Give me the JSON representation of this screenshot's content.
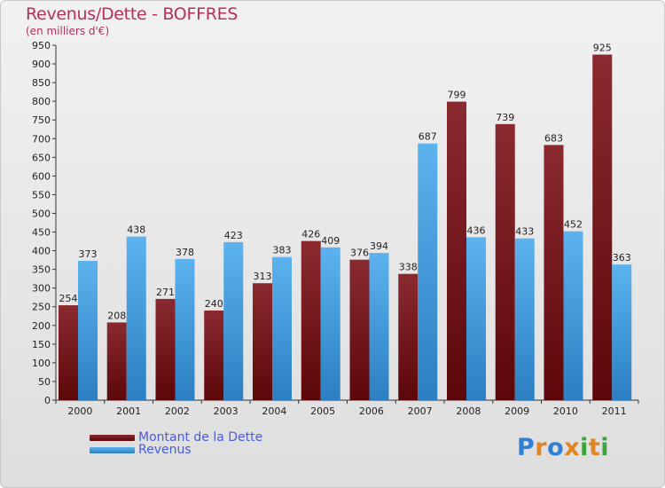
{
  "colors": {
    "debt": "#6b0f14",
    "revenue": "#3a9be2",
    "title": "#b5305a",
    "legend_text": "#4b5bd6"
  },
  "chart_data": {
    "type": "bar",
    "title": "Revenus/Dette - BOFFRES",
    "subtitle": "(en milliers d'€)",
    "xlabel": "",
    "ylabel": "",
    "ylim": [
      0,
      950
    ],
    "ytick_step": 50,
    "grid": false,
    "legend_position": "bottom-left",
    "categories": [
      "2000",
      "2001",
      "2002",
      "2003",
      "2004",
      "2005",
      "2006",
      "2007",
      "2008",
      "2009",
      "2010",
      "2011"
    ],
    "series": [
      {
        "name": "Montant de la Dette",
        "values": [
          254,
          208,
          271,
          240,
          313,
          426,
          376,
          338,
          799,
          739,
          683,
          925
        ]
      },
      {
        "name": "Revenus",
        "values": [
          373,
          438,
          378,
          423,
          383,
          409,
          394,
          687,
          436,
          433,
          452,
          363
        ]
      }
    ]
  },
  "logo": {
    "text": "Proxiti",
    "letter_colors": [
      "#2f7fd3",
      "#e2841f",
      "#2f7fd3",
      "#e2841f",
      "#3aa33a",
      "#e2841f",
      "#3aa33a"
    ]
  }
}
